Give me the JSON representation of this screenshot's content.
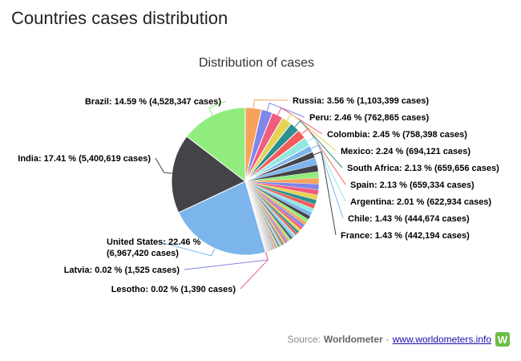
{
  "page": {
    "title": "Countries cases distribution"
  },
  "source": {
    "label": "Source:",
    "name": "Worldometer",
    "separator": "-",
    "link_text": "www.worldometers.info",
    "logo_icon": "worldometer-logo-icon",
    "logo_letter": "W"
  },
  "chart_data": {
    "type": "pie",
    "title": "Distribution of cases",
    "labeled_slices": [
      {
        "name": "United States",
        "percent": 22.46,
        "cases": "6,967,420",
        "color": "#7cb5ec"
      },
      {
        "name": "India",
        "percent": 17.41,
        "cases": "5,400,619",
        "color": "#434348"
      },
      {
        "name": "Brazil",
        "percent": 14.59,
        "cases": "4,528,347",
        "color": "#90ed7d"
      },
      {
        "name": "Russia",
        "percent": 3.56,
        "cases": "1,103,399",
        "color": "#f7a35c"
      },
      {
        "name": "Peru",
        "percent": 2.46,
        "cases": "762,865",
        "color": "#8085e9"
      },
      {
        "name": "Colombia",
        "percent": 2.45,
        "cases": "758,398",
        "color": "#f15c80"
      },
      {
        "name": "Mexico",
        "percent": 2.24,
        "cases": "694,121",
        "color": "#e4d354"
      },
      {
        "name": "South Africa",
        "percent": 2.13,
        "cases": "659,656",
        "color": "#2b908f"
      },
      {
        "name": "Spain",
        "percent": 2.13,
        "cases": "659,334",
        "color": "#f45b5b"
      },
      {
        "name": "Argentina",
        "percent": 2.01,
        "cases": "622,934",
        "color": "#91e8e1"
      },
      {
        "name": "Chile",
        "percent": 1.43,
        "cases": "444,674",
        "color": "#7cb5ec"
      },
      {
        "name": "France",
        "percent": 1.43,
        "cases": "442,194",
        "color": "#434348"
      },
      {
        "name": "Latvia",
        "percent": 0.0,
        "cases": "1,525",
        "color": "#8085e9"
      },
      {
        "name": "Lesotho",
        "percent": 0.0,
        "cases": "1,390",
        "color": "#f15c80"
      }
    ],
    "other_countries_percent": 25.7,
    "palette": [
      "#7cb5ec",
      "#434348",
      "#90ed7d",
      "#f7a35c",
      "#8085e9",
      "#f15c80",
      "#e4d354",
      "#2b908f",
      "#f45b5b",
      "#91e8e1"
    ]
  }
}
